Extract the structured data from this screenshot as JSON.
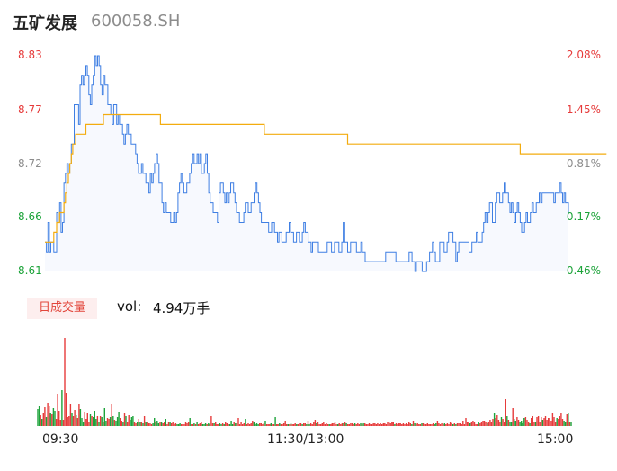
{
  "header": {
    "name": "五矿发展",
    "code": "600058.SH"
  },
  "colors": {
    "up": "#e63b3b",
    "down": "#1da33a",
    "flat": "#8c8c8c",
    "price": "#3f7fe3",
    "avg": "#f3ac0f"
  },
  "tab": {
    "label": "日成交量"
  },
  "volume_info": {
    "label": "vol:",
    "value": "4.94万手"
  },
  "chart_data": [
    {
      "type": "line",
      "title": "",
      "x_ticks": [
        "09:30",
        "11:30/13:00",
        "15:00"
      ],
      "y_ticks_price": [
        "8.83",
        "8.77",
        "8.72",
        "8.66",
        "8.61"
      ],
      "y_ticks_change": [
        "2.08%",
        "1.45%",
        "0.81%",
        "0.17%",
        "-0.46%"
      ],
      "ylim": [
        8.61,
        8.83
      ],
      "prev_close": 8.65,
      "series": [
        {
          "values": [
            8.64,
            8.63,
            8.66,
            8.63,
            8.64,
            8.64,
            8.63,
            8.63,
            8.67,
            8.66,
            8.68,
            8.65,
            8.66,
            8.7,
            8.71,
            8.72,
            8.71,
            8.72,
            8.74,
            8.74,
            8.78,
            8.78,
            8.78,
            8.76,
            8.8,
            8.81,
            8.8,
            8.81,
            8.82,
            8.81,
            8.79,
            8.78,
            8.8,
            8.81,
            8.83,
            8.82,
            8.83,
            8.82,
            8.8,
            8.79,
            8.81,
            8.8,
            8.8,
            8.78,
            8.78,
            8.77,
            8.76,
            8.78,
            8.78,
            8.76,
            8.77,
            8.76,
            8.76,
            8.75,
            8.74,
            8.75,
            8.76,
            8.75,
            8.75,
            8.74,
            8.74,
            8.74,
            8.73,
            8.72,
            8.71,
            8.71,
            8.72,
            8.71,
            8.71,
            8.7,
            8.7,
            8.69,
            8.71,
            8.7,
            8.71,
            8.72,
            8.73,
            8.72,
            8.7,
            8.7,
            8.68,
            8.67,
            8.68,
            8.67,
            8.67,
            8.67,
            8.66,
            8.66,
            8.67,
            8.66,
            8.67,
            8.69,
            8.7,
            8.71,
            8.7,
            8.69,
            8.69,
            8.7,
            8.7,
            8.71,
            8.72,
            8.73,
            8.72,
            8.72,
            8.73,
            8.72,
            8.73,
            8.71,
            8.71,
            8.72,
            8.73,
            8.71,
            8.69,
            8.68,
            8.68,
            8.67,
            8.67,
            8.67,
            8.66,
            8.69,
            8.7,
            8.7,
            8.69,
            8.68,
            8.69,
            8.68,
            8.69,
            8.7,
            8.7,
            8.69,
            8.68,
            8.67,
            8.67,
            8.66,
            8.66,
            8.66,
            8.67,
            8.68,
            8.68,
            8.67,
            8.67,
            8.68,
            8.68,
            8.69,
            8.7,
            8.69,
            8.68,
            8.67,
            8.66,
            8.66,
            8.66,
            8.66,
            8.66,
            8.65,
            8.65,
            8.66,
            8.66,
            8.65,
            8.65,
            8.64,
            8.65,
            8.65,
            8.64,
            8.64,
            8.64,
            8.65,
            8.65,
            8.66,
            8.65,
            8.65,
            8.64,
            8.64,
            8.65,
            8.65,
            8.64,
            8.64,
            8.65,
            8.66,
            8.65,
            8.65,
            8.64,
            8.64,
            8.63,
            8.64,
            8.64,
            8.64,
            8.64,
            8.63,
            8.63,
            8.63,
            8.63,
            8.63,
            8.63,
            8.64,
            8.64,
            8.64,
            8.63,
            8.63,
            8.64,
            8.64,
            8.64,
            8.63,
            8.63,
            8.64,
            8.66,
            8.64,
            8.64,
            8.63,
            8.63,
            8.64,
            8.64,
            8.64,
            8.64,
            8.63,
            8.63,
            8.63,
            8.64,
            8.63,
            8.63,
            8.62,
            8.62,
            8.62,
            8.62,
            8.62,
            8.62,
            8.62,
            8.62,
            8.62,
            8.62,
            8.62,
            8.62,
            8.62,
            8.62,
            8.63,
            8.63,
            8.63,
            8.63,
            8.63,
            8.63,
            8.63,
            8.62,
            8.62,
            8.62,
            8.62,
            8.62,
            8.62,
            8.62,
            8.62,
            8.62,
            8.63,
            8.63,
            8.62,
            8.62,
            8.61,
            8.62,
            8.62,
            8.62,
            8.62,
            8.61,
            8.61,
            8.61,
            8.62,
            8.62,
            8.63,
            8.63,
            8.64,
            8.63,
            8.62,
            8.62,
            8.62,
            8.64,
            8.64,
            8.64,
            8.63,
            8.63,
            8.64,
            8.65,
            8.65,
            8.65,
            8.64,
            8.64,
            8.62,
            8.63,
            8.64,
            8.64,
            8.64,
            8.64,
            8.64,
            8.64,
            8.64,
            8.63,
            8.63,
            8.64,
            8.64,
            8.64,
            8.65,
            8.64,
            8.64,
            8.64,
            8.65,
            8.66,
            8.67,
            8.66,
            8.67,
            8.68,
            8.68,
            8.66,
            8.66,
            8.68,
            8.69,
            8.69,
            8.68,
            8.68,
            8.69,
            8.7,
            8.69,
            8.69,
            8.68,
            8.67,
            8.68,
            8.67,
            8.66,
            8.67,
            8.68,
            8.67,
            8.66,
            8.65,
            8.65,
            8.66,
            8.67,
            8.66,
            8.66,
            8.67,
            8.68,
            8.67,
            8.67,
            8.68,
            8.68,
            8.69,
            8.68,
            8.69,
            8.69,
            8.69,
            8.69,
            8.69,
            8.69,
            8.69,
            8.69,
            8.68,
            8.69,
            8.69,
            8.69,
            8.7,
            8.69,
            8.68,
            8.69,
            8.68,
            8.68,
            8.67
          ]
        },
        {
          "values": [
            8.64,
            8.64,
            8.64,
            8.64,
            8.64,
            8.64,
            8.65,
            8.65,
            8.66,
            8.66,
            8.67,
            8.67,
            8.67,
            8.68,
            8.69,
            8.7,
            8.71,
            8.72,
            8.73,
            8.74,
            8.74,
            8.75,
            8.75,
            8.75,
            8.75,
            8.75,
            8.75,
            8.75,
            8.76,
            8.76,
            8.76,
            8.76,
            8.76,
            8.76,
            8.76,
            8.76,
            8.76,
            8.76,
            8.76,
            8.76,
            8.77,
            8.77,
            8.77,
            8.77,
            8.77,
            8.77,
            8.77,
            8.77,
            8.77,
            8.77,
            8.77,
            8.77,
            8.77,
            8.77,
            8.77,
            8.77,
            8.77,
            8.77,
            8.77,
            8.77,
            8.77,
            8.77,
            8.77,
            8.77,
            8.77,
            8.77,
            8.77,
            8.77,
            8.77,
            8.77,
            8.77,
            8.77,
            8.77,
            8.77,
            8.77,
            8.77,
            8.77,
            8.77,
            8.77,
            8.76,
            8.76,
            8.76,
            8.76,
            8.76,
            8.76,
            8.76,
            8.76,
            8.76,
            8.76,
            8.76,
            8.76,
            8.76,
            8.76,
            8.76,
            8.76,
            8.76,
            8.76,
            8.76,
            8.76,
            8.76,
            8.76,
            8.76,
            8.76,
            8.76,
            8.76,
            8.76,
            8.76,
            8.76,
            8.76,
            8.76,
            8.76,
            8.76,
            8.76,
            8.76,
            8.76,
            8.76,
            8.76,
            8.76,
            8.76,
            8.76,
            8.76,
            8.76,
            8.76,
            8.76,
            8.76,
            8.76,
            8.76,
            8.76,
            8.76,
            8.76,
            8.76,
            8.76,
            8.76,
            8.76,
            8.76,
            8.76,
            8.76,
            8.76,
            8.76,
            8.76,
            8.76,
            8.76,
            8.76,
            8.76,
            8.76,
            8.76,
            8.76,
            8.76,
            8.76,
            8.76,
            8.75,
            8.75,
            8.75,
            8.75,
            8.75,
            8.75,
            8.75,
            8.75,
            8.75,
            8.75,
            8.75,
            8.75,
            8.75,
            8.75,
            8.75,
            8.75,
            8.75,
            8.75,
            8.75,
            8.75,
            8.75,
            8.75,
            8.75,
            8.75,
            8.75,
            8.75,
            8.75,
            8.75,
            8.75,
            8.75,
            8.75,
            8.75,
            8.75,
            8.75,
            8.75,
            8.75,
            8.75,
            8.75,
            8.75,
            8.75,
            8.75,
            8.75,
            8.75,
            8.75,
            8.75,
            8.75,
            8.75,
            8.75,
            8.75,
            8.75,
            8.75,
            8.75,
            8.75,
            8.75,
            8.75,
            8.75,
            8.75,
            8.74,
            8.74,
            8.74,
            8.74,
            8.74,
            8.74,
            8.74,
            8.74,
            8.74,
            8.74,
            8.74,
            8.74,
            8.74,
            8.74,
            8.74,
            8.74,
            8.74,
            8.74,
            8.74,
            8.74,
            8.74,
            8.74,
            8.74,
            8.74,
            8.74,
            8.74,
            8.74,
            8.74,
            8.74,
            8.74,
            8.74,
            8.74,
            8.74,
            8.74,
            8.74,
            8.74,
            8.74,
            8.74,
            8.74,
            8.74,
            8.74,
            8.74,
            8.74,
            8.74,
            8.74,
            8.74,
            8.74,
            8.74,
            8.74,
            8.74,
            8.74,
            8.74,
            8.74,
            8.74,
            8.74,
            8.74,
            8.74,
            8.74,
            8.74,
            8.74,
            8.74,
            8.74,
            8.74,
            8.74,
            8.74,
            8.74,
            8.74,
            8.74,
            8.74,
            8.74,
            8.74,
            8.74,
            8.74,
            8.74,
            8.74,
            8.74,
            8.74,
            8.74,
            8.74,
            8.74,
            8.74,
            8.74,
            8.74,
            8.74,
            8.74,
            8.74,
            8.74,
            8.74,
            8.74,
            8.74,
            8.74,
            8.74,
            8.74,
            8.74,
            8.74,
            8.74,
            8.74,
            8.74,
            8.74,
            8.74,
            8.74,
            8.74,
            8.74,
            8.74,
            8.74,
            8.74,
            8.74,
            8.74,
            8.74,
            8.74,
            8.74,
            8.74,
            8.74,
            8.74,
            8.74,
            8.74,
            8.74,
            8.74,
            8.73,
            8.73,
            8.73,
            8.73,
            8.73,
            8.73,
            8.73,
            8.73,
            8.73,
            8.73,
            8.73,
            8.73,
            8.73,
            8.73,
            8.73,
            8.73,
            8.73,
            8.73,
            8.73,
            8.73,
            8.73,
            8.73,
            8.73,
            8.73,
            8.73,
            8.73,
            8.73,
            8.73,
            8.73,
            8.73,
            8.73,
            8.73,
            8.73,
            8.73,
            8.73,
            8.73,
            8.73,
            8.73,
            8.73,
            8.73,
            8.73,
            8.73,
            8.73,
            8.73,
            8.73,
            8.73,
            8.73,
            8.73,
            8.73,
            8.73,
            8.73,
            8.73,
            8.73,
            8.73,
            8.73,
            8.73,
            8.73,
            8.73,
            8.73,
            8.73
          ]
        }
      ]
    },
    {
      "type": "bar",
      "title": "",
      "values": [
        19,
        22,
        12,
        8,
        14,
        21,
        10,
        26,
        22,
        15,
        13,
        20,
        17,
        8,
        36,
        17,
        7,
        40,
        7,
        98,
        37,
        10,
        11,
        24,
        14,
        11,
        18,
        12,
        9,
        24,
        19,
        9,
        5,
        16,
        8,
        15,
        5,
        13,
        11,
        10,
        17,
        8,
        11,
        4,
        11,
        10,
        5,
        20,
        6,
        9,
        8,
        10,
        25,
        11,
        7,
        6,
        10,
        16,
        9,
        6,
        4,
        15,
        11,
        5,
        12,
        7,
        10,
        11,
        5,
        3,
        4,
        8,
        4,
        4,
        3,
        11,
        5,
        4,
        3,
        3,
        2,
        3,
        9,
        4,
        6,
        3,
        4,
        5,
        3,
        4,
        8,
        2,
        5,
        4,
        3,
        4,
        2,
        3,
        2,
        2,
        3,
        2,
        2,
        2,
        4,
        3,
        5,
        9,
        2,
        2,
        3,
        2,
        4,
        2,
        3,
        4,
        2,
        2,
        3,
        2,
        3,
        2,
        11,
        3,
        3,
        5,
        2,
        2,
        3,
        2,
        3,
        2,
        4,
        3,
        2,
        2,
        6,
        2,
        4,
        3,
        3,
        9,
        2,
        5,
        2,
        3,
        8,
        2,
        3,
        2,
        3,
        6,
        4,
        2,
        3,
        2,
        3,
        3,
        2,
        3,
        6,
        2,
        2,
        2,
        3,
        2,
        2,
        10,
        2,
        2,
        3,
        2,
        2,
        3,
        6,
        2,
        2,
        2,
        3,
        2,
        2,
        3,
        2,
        2,
        3,
        3,
        2,
        3,
        3,
        2,
        6,
        2,
        3,
        2,
        4,
        7,
        3,
        4,
        2,
        2,
        3,
        4,
        2,
        3,
        2,
        2,
        2,
        3,
        3,
        4,
        2,
        2,
        3,
        2,
        3,
        3,
        4,
        3,
        2,
        2,
        3,
        3,
        2,
        3,
        2,
        3,
        2,
        3,
        2,
        3,
        3,
        2,
        2,
        3,
        2,
        2,
        3,
        3,
        2,
        3,
        2,
        3,
        2,
        3,
        3,
        2,
        4,
        4,
        3,
        5,
        4,
        2,
        3,
        2,
        3,
        3,
        2,
        3,
        2,
        3,
        2,
        4,
        3,
        2,
        6,
        3,
        2,
        3,
        2,
        2,
        3,
        3,
        2,
        2,
        3,
        2,
        2,
        2,
        3,
        2,
        3,
        6,
        3,
        2,
        3,
        2,
        3,
        2,
        3,
        2,
        4,
        3,
        2,
        3,
        2,
        3,
        3,
        3,
        2,
        6,
        2,
        9,
        4,
        4,
        3,
        5,
        6,
        4,
        2,
        2,
        5,
        3,
        4,
        6,
        6,
        4,
        3,
        5,
        7,
        5,
        8,
        14,
        9,
        12,
        7,
        5,
        10,
        8,
        5,
        30,
        11,
        7,
        5,
        5,
        20,
        8,
        6,
        10,
        7,
        4,
        6,
        3,
        9,
        10,
        7,
        5,
        3,
        9,
        11,
        5,
        4,
        10,
        11,
        5,
        10,
        7,
        9,
        11,
        7,
        9,
        9,
        6,
        15,
        10,
        5,
        9,
        8,
        11,
        14,
        8,
        6,
        4,
        13,
        15,
        5,
        5
      ]
    }
  ]
}
